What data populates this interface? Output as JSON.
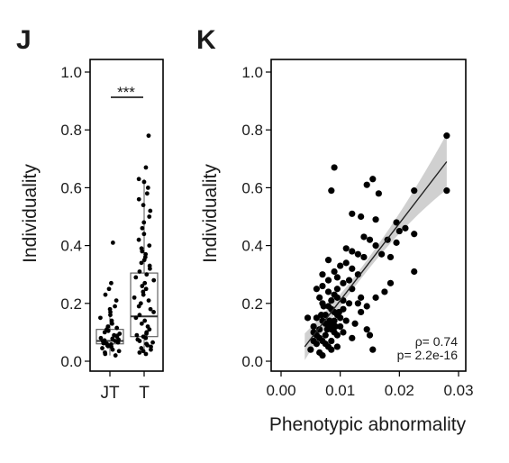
{
  "colors": {
    "points": "#000000",
    "frame": "#000000",
    "band": "#c8c8c8",
    "fit": "#222222",
    "box": "#555555"
  },
  "chart_data": [
    {
      "panel": "J",
      "type": "box",
      "ylabel": "Individuality",
      "ylim": [
        0,
        1.05
      ],
      "yticks": [
        "0.0",
        "0.2",
        "0.4",
        "0.6",
        "0.8",
        "1.0"
      ],
      "categories": [
        "JT",
        "T"
      ],
      "significance": "***",
      "boxes": [
        {
          "category": "JT",
          "q1": 0.06,
          "median": 0.07,
          "q3": 0.11,
          "whisker_low": 0.02,
          "whisker_high": 0.17
        },
        {
          "category": "T",
          "q1": 0.085,
          "median": 0.155,
          "q3": 0.305,
          "whisker_low": 0.03,
          "whisker_high": 0.63
        }
      ],
      "points": {
        "JT": [
          0.41,
          0.27,
          0.25,
          0.23,
          0.21,
          0.19,
          0.18,
          0.17,
          0.16,
          0.15,
          0.14,
          0.13,
          0.12,
          0.115,
          0.11,
          0.105,
          0.1,
          0.095,
          0.09,
          0.088,
          0.085,
          0.08,
          0.078,
          0.075,
          0.072,
          0.07,
          0.068,
          0.065,
          0.062,
          0.06,
          0.058,
          0.055,
          0.052,
          0.05,
          0.045,
          0.04,
          0.035,
          0.03,
          0.025,
          0.02
        ],
        "T": [
          0.78,
          0.67,
          0.63,
          0.62,
          0.6,
          0.58,
          0.56,
          0.54,
          0.52,
          0.5,
          0.48,
          0.46,
          0.44,
          0.42,
          0.4,
          0.39,
          0.38,
          0.37,
          0.36,
          0.35,
          0.34,
          0.33,
          0.32,
          0.31,
          0.3,
          0.29,
          0.28,
          0.27,
          0.26,
          0.25,
          0.24,
          0.23,
          0.22,
          0.21,
          0.2,
          0.19,
          0.18,
          0.17,
          0.16,
          0.15,
          0.14,
          0.13,
          0.12,
          0.11,
          0.1,
          0.095,
          0.09,
          0.085,
          0.08,
          0.075,
          0.07,
          0.065,
          0.06,
          0.055,
          0.05,
          0.045,
          0.04,
          0.035,
          0.03,
          0.025
        ]
      }
    },
    {
      "panel": "K",
      "type": "scatter",
      "xlabel": "Phenotypic abnormality",
      "ylabel": "Individuality",
      "xlim": [
        -0.001,
        0.0305
      ],
      "ylim": [
        -0.03,
        1.05
      ],
      "xticks": [
        "0.00",
        "0.01",
        "0.02",
        "0.03"
      ],
      "yticks": [
        "0.0",
        "0.2",
        "0.4",
        "0.6",
        "0.8",
        "1.0"
      ],
      "annotation": [
        "ρ= 0.74",
        "p= 2.2e-16"
      ],
      "fit": {
        "x0": 0.004,
        "y0": 0.05,
        "x1": 0.028,
        "y1": 0.69
      },
      "points": [
        [
          0.028,
          0.78
        ],
        [
          0.028,
          0.59
        ],
        [
          0.009,
          0.67
        ],
        [
          0.0155,
          0.63
        ],
        [
          0.0145,
          0.61
        ],
        [
          0.0165,
          0.58
        ],
        [
          0.0085,
          0.59
        ],
        [
          0.0225,
          0.59
        ],
        [
          0.012,
          0.51
        ],
        [
          0.0135,
          0.5
        ],
        [
          0.016,
          0.49
        ],
        [
          0.0195,
          0.48
        ],
        [
          0.02,
          0.45
        ],
        [
          0.021,
          0.46
        ],
        [
          0.0225,
          0.44
        ],
        [
          0.014,
          0.43
        ],
        [
          0.015,
          0.42
        ],
        [
          0.016,
          0.4
        ],
        [
          0.018,
          0.42
        ],
        [
          0.0195,
          0.41
        ],
        [
          0.011,
          0.39
        ],
        [
          0.012,
          0.38
        ],
        [
          0.013,
          0.37
        ],
        [
          0.014,
          0.36
        ],
        [
          0.017,
          0.37
        ],
        [
          0.0185,
          0.36
        ],
        [
          0.0225,
          0.31
        ],
        [
          0.01,
          0.33
        ],
        [
          0.011,
          0.34
        ],
        [
          0.012,
          0.32
        ],
        [
          0.013,
          0.3
        ],
        [
          0.009,
          0.31
        ],
        [
          0.0095,
          0.29
        ],
        [
          0.008,
          0.28
        ],
        [
          0.0105,
          0.27
        ],
        [
          0.006,
          0.25
        ],
        [
          0.007,
          0.26
        ],
        [
          0.008,
          0.24
        ],
        [
          0.009,
          0.23
        ],
        [
          0.0095,
          0.22
        ],
        [
          0.0105,
          0.21
        ],
        [
          0.0115,
          0.2
        ],
        [
          0.013,
          0.2
        ],
        [
          0.007,
          0.2
        ],
        [
          0.008,
          0.19
        ],
        [
          0.0085,
          0.18
        ],
        [
          0.009,
          0.17
        ],
        [
          0.0095,
          0.16
        ],
        [
          0.01,
          0.15
        ],
        [
          0.011,
          0.14
        ],
        [
          0.006,
          0.15
        ],
        [
          0.007,
          0.14
        ],
        [
          0.0075,
          0.13
        ],
        [
          0.008,
          0.12
        ],
        [
          0.0085,
          0.11
        ],
        [
          0.009,
          0.1
        ],
        [
          0.0095,
          0.09
        ],
        [
          0.01,
          0.12
        ],
        [
          0.0055,
          0.1
        ],
        [
          0.006,
          0.09
        ],
        [
          0.0065,
          0.08
        ],
        [
          0.007,
          0.07
        ],
        [
          0.0075,
          0.06
        ],
        [
          0.008,
          0.05
        ],
        [
          0.0085,
          0.04
        ],
        [
          0.0065,
          0.03
        ],
        [
          0.007,
          0.02
        ],
        [
          0.0045,
          0.15
        ],
        [
          0.0055,
          0.12
        ],
        [
          0.006,
          0.06
        ],
        [
          0.0105,
          0.1
        ],
        [
          0.012,
          0.08
        ],
        [
          0.0125,
          0.13
        ],
        [
          0.0135,
          0.17
        ],
        [
          0.0145,
          0.11
        ],
        [
          0.015,
          0.09
        ],
        [
          0.0155,
          0.04
        ],
        [
          0.016,
          0.22
        ],
        [
          0.0175,
          0.24
        ],
        [
          0.0185,
          0.27
        ],
        [
          0.008,
          0.35
        ],
        [
          0.007,
          0.3
        ],
        [
          0.0065,
          0.22
        ],
        [
          0.0085,
          0.21
        ],
        [
          0.0095,
          0.25
        ],
        [
          0.0115,
          0.28
        ],
        [
          0.005,
          0.04
        ],
        [
          0.0055,
          0.07
        ],
        [
          0.0075,
          0.16
        ],
        [
          0.009,
          0.14
        ],
        [
          0.0105,
          0.18
        ],
        [
          0.012,
          0.25
        ],
        [
          0.0135,
          0.22
        ],
        [
          0.0145,
          0.19
        ],
        [
          0.0065,
          0.11
        ],
        [
          0.0085,
          0.07
        ],
        [
          0.0095,
          0.05
        ],
        [
          0.0075,
          0.09
        ],
        [
          0.0078,
          0.11
        ],
        [
          0.0082,
          0.14
        ],
        [
          0.0088,
          0.13
        ],
        [
          0.0092,
          0.12
        ],
        [
          0.0098,
          0.17
        ],
        [
          0.0068,
          0.16
        ],
        [
          0.0072,
          0.19
        ]
      ]
    }
  ]
}
